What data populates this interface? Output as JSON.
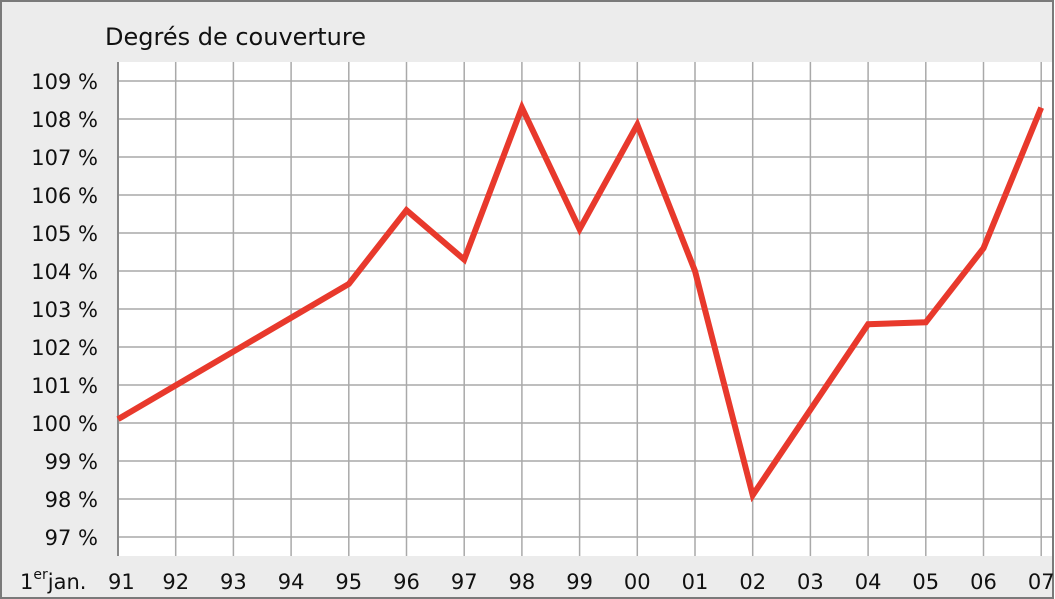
{
  "chart_data": {
    "type": "line",
    "title": "Degrés de couverture",
    "date_prefix": {
      "day": "1",
      "day_suffix": "er",
      "month": "jan."
    },
    "categories": [
      "91",
      "92",
      "93",
      "94",
      "95",
      "96",
      "97",
      "98",
      "99",
      "00",
      "01",
      "02",
      "03",
      "04",
      "05",
      "06",
      "07"
    ],
    "series": [
      {
        "name": "Degrés de couverture",
        "color": "#e8392c",
        "values": [
          100.1,
          100.99,
          101.88,
          102.77,
          103.66,
          105.6,
          104.3,
          108.3,
          105.1,
          107.85,
          104.0,
          98.1,
          100.35,
          102.6,
          102.65,
          104.6,
          108.3
        ]
      }
    ],
    "ylim": [
      96.5,
      109.5
    ],
    "yticks": [
      {
        "value": 97,
        "label": "97 %"
      },
      {
        "value": 98,
        "label": "98 %"
      },
      {
        "value": 99,
        "label": "99 %"
      },
      {
        "value": 100,
        "label": "100 %"
      },
      {
        "value": 101,
        "label": "101 %"
      },
      {
        "value": 102,
        "label": "102 %"
      },
      {
        "value": 103,
        "label": "103 %"
      },
      {
        "value": 104,
        "label": "104 %"
      },
      {
        "value": 105,
        "label": "105 %"
      },
      {
        "value": 106,
        "label": "106 %"
      },
      {
        "value": 107,
        "label": "107 %"
      },
      {
        "value": 108,
        "label": "108 %"
      },
      {
        "value": 109,
        "label": "109 %"
      }
    ],
    "grid": true
  }
}
